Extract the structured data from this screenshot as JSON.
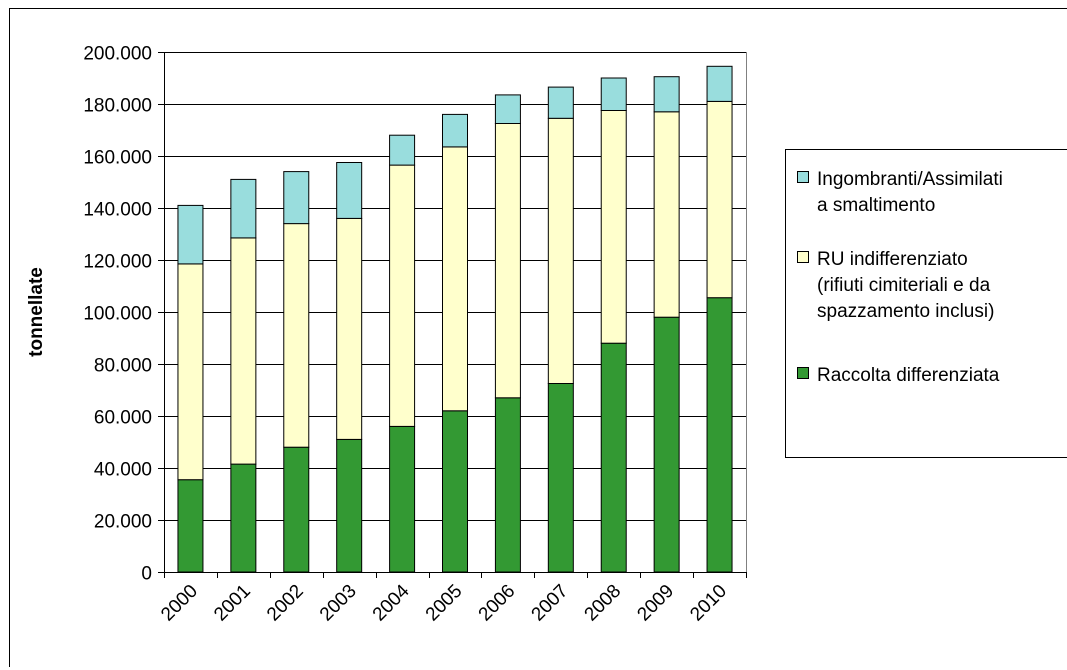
{
  "chart_data": {
    "type": "bar",
    "stacked": true,
    "title": "",
    "xlabel": "",
    "ylabel": "tonnellate",
    "ylim": [
      0,
      200000
    ],
    "ytick_step": 20000,
    "ytick_labels": [
      "0",
      "20.000",
      "40.000",
      "60.000",
      "80.000",
      "100.000",
      "120.000",
      "140.000",
      "160.000",
      "180.000",
      "200.000"
    ],
    "categories": [
      "2000",
      "2001",
      "2002",
      "2003",
      "2004",
      "2005",
      "2006",
      "2007",
      "2008",
      "2009",
      "2010"
    ],
    "grid": "horizontal",
    "legend_position": "right",
    "series": [
      {
        "name": "Raccolta differenziata",
        "color": "#339933",
        "values": [
          35500,
          41500,
          48000,
          51000,
          56000,
          62000,
          67000,
          72500,
          88000,
          98000,
          105500
        ]
      },
      {
        "name": "RU indifferenziato (rifiuti cimiteriali e da spazzamento inclusi)",
        "legend_lines": [
          "RU indifferenziato",
          "(rifiuti cimiteriali e da",
          "spazzamento inclusi)"
        ],
        "color": "#ffffcc",
        "values": [
          83000,
          87000,
          86000,
          85000,
          100500,
          101500,
          105500,
          102000,
          89500,
          79000,
          75500
        ]
      },
      {
        "name": "Ingombranti/Assimilati a smaltimento",
        "legend_lines": [
          "Ingombranti/Assimilati",
          "a smaltimento"
        ],
        "color": "#99dddd",
        "values": [
          22500,
          22500,
          20000,
          21500,
          11500,
          12500,
          11000,
          12000,
          12500,
          13500,
          13500
        ]
      }
    ]
  }
}
